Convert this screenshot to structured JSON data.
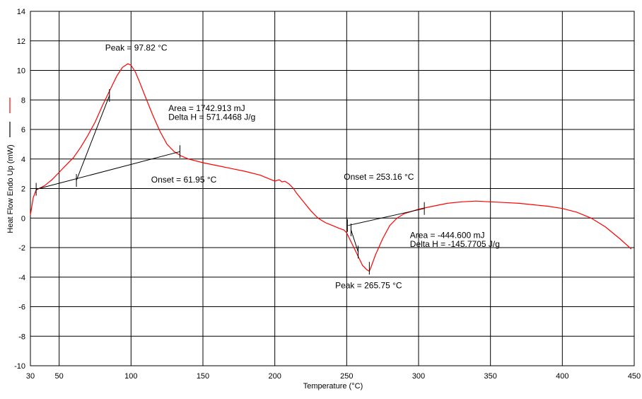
{
  "chart_data": {
    "type": "line",
    "title": "",
    "xlabel": "Temperature (°C)",
    "ylabel": "Heat Flow Endo Up (mW)",
    "xlim": [
      30,
      450
    ],
    "ylim": [
      -10,
      14
    ],
    "x_ticks": [
      30,
      50,
      100,
      150,
      200,
      250,
      300,
      350,
      400,
      450
    ],
    "y_ticks": [
      -10,
      -8,
      -6,
      -4,
      -2,
      0,
      2,
      4,
      6,
      8,
      10,
      12,
      14
    ],
    "grid": true,
    "legend": {
      "placement": "left-outside",
      "entries": [
        {
          "color": "#ff0000"
        },
        {
          "color": "#000000"
        }
      ]
    },
    "series": [
      {
        "color": "#ff0000",
        "x": [
          30,
          31,
          32,
          34,
          36,
          40,
          45,
          50,
          55,
          60,
          65,
          70,
          75,
          80,
          85,
          90,
          94,
          97.82,
          100,
          103,
          106,
          110,
          115,
          120,
          125,
          130,
          135,
          140,
          150,
          160,
          170,
          180,
          190,
          195,
          200,
          203,
          205,
          207,
          210,
          213,
          215,
          220,
          225,
          230,
          235,
          240,
          245,
          248,
          250,
          252,
          255,
          258,
          261,
          264,
          265.75,
          267,
          270,
          275,
          280,
          285,
          290,
          295,
          300,
          310,
          320,
          330,
          340,
          350,
          360,
          370,
          380,
          390,
          400,
          410,
          420,
          430,
          440,
          448
        ],
        "y": [
          0.2,
          0.8,
          1.4,
          1.9,
          2.0,
          2.2,
          2.6,
          3.1,
          3.6,
          4.1,
          4.8,
          5.6,
          6.5,
          7.6,
          8.6,
          9.6,
          10.2,
          10.45,
          10.35,
          9.9,
          9.2,
          8.2,
          7.0,
          5.9,
          5.0,
          4.5,
          4.2,
          4.0,
          3.75,
          3.55,
          3.35,
          3.15,
          2.9,
          2.7,
          2.5,
          2.6,
          2.45,
          2.5,
          2.3,
          2.0,
          1.7,
          1.1,
          0.5,
          0.0,
          -0.3,
          -0.5,
          -0.7,
          -0.8,
          -1.0,
          -1.4,
          -2.0,
          -2.6,
          -3.2,
          -3.5,
          -3.6,
          -3.3,
          -2.5,
          -1.4,
          -0.5,
          0.0,
          0.3,
          0.45,
          0.6,
          0.8,
          1.0,
          1.1,
          1.15,
          1.1,
          1.05,
          1.0,
          0.9,
          0.8,
          0.65,
          0.4,
          0.0,
          -0.6,
          -1.4,
          -2.1
        ]
      }
    ],
    "annotation_lines": [
      {
        "x": [
          34,
          134
        ],
        "y": [
          1.95,
          4.5
        ],
        "color": "#000000"
      },
      {
        "x": [
          62,
          85
        ],
        "y": [
          2.55,
          8.3
        ],
        "color": "#000000"
      },
      {
        "x": [
          251,
          304
        ],
        "y": [
          -0.5,
          0.65
        ],
        "color": "#000000"
      },
      {
        "x": [
          253,
          258
        ],
        "y": [
          -0.8,
          -2.3
        ],
        "color": "#000000"
      }
    ],
    "annotation_markers": [
      {
        "x": 34,
        "y": 1.95
      },
      {
        "x": 62,
        "y": 2.55
      },
      {
        "x": 85,
        "y": 8.3
      },
      {
        "x": 134,
        "y": 4.5
      },
      {
        "x": 250.5,
        "y": -0.5
      },
      {
        "x": 253,
        "y": -0.8
      },
      {
        "x": 258,
        "y": -2.3
      },
      {
        "x": 265.75,
        "y": -3.4
      },
      {
        "x": 304,
        "y": 0.65
      }
    ],
    "annotations": [
      {
        "text": "Peak = 97.82 °C",
        "x": 82,
        "y": 11.35
      },
      {
        "text": "Area = 1742.913 mJ",
        "x": 126,
        "y": 7.25
      },
      {
        "text": "Delta H = 571.4468 J/g",
        "x": 126,
        "y": 6.65
      },
      {
        "text": "Onset = 61.95 °C",
        "x": 114,
        "y": 2.4
      },
      {
        "text": "Onset = 253.16 °C",
        "x": 248,
        "y": 2.6
      },
      {
        "text": "Area = -444.600 mJ",
        "x": 294,
        "y": -1.35
      },
      {
        "text": "Delta H = -145.7705 J/g",
        "x": 294,
        "y": -1.95
      },
      {
        "text": "Peak = 265.75 °C",
        "x": 242,
        "y": -4.75
      }
    ]
  }
}
